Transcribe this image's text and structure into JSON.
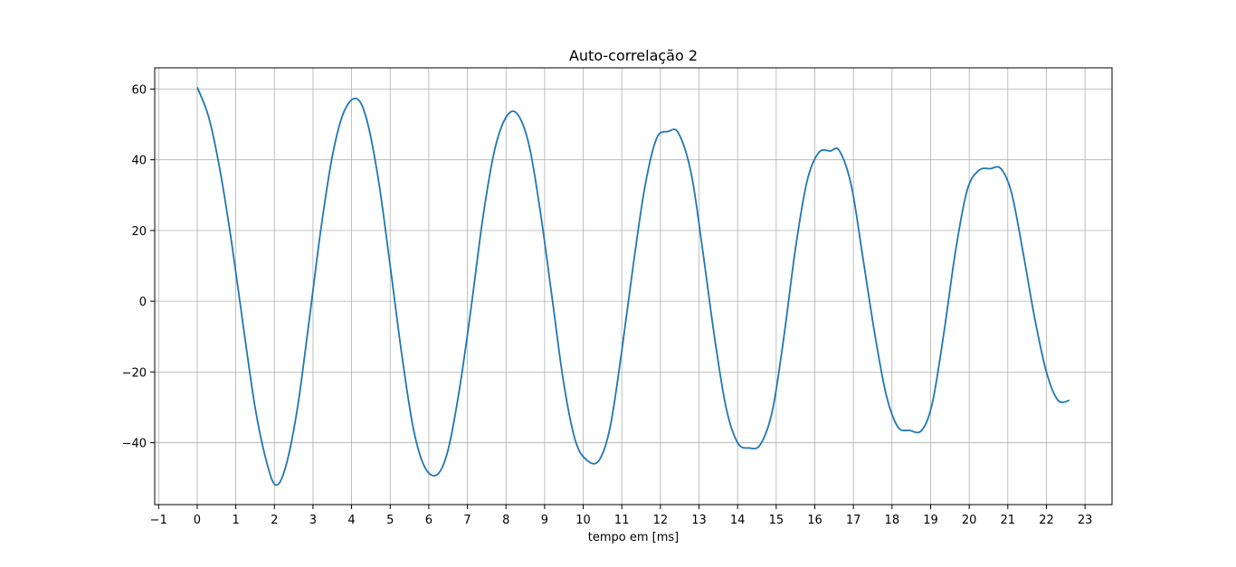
{
  "chart_data": {
    "type": "line",
    "title": "Auto-correlação 2",
    "xlabel": "tempo em [ms]",
    "ylabel": "",
    "xlim": [
      -1.1,
      23.7
    ],
    "ylim": [
      -57.5,
      66.0
    ],
    "xticks": [
      -1,
      0,
      1,
      2,
      3,
      4,
      5,
      6,
      7,
      8,
      9,
      10,
      11,
      12,
      13,
      14,
      15,
      16,
      17,
      18,
      19,
      20,
      21,
      22,
      23
    ],
    "xtick_labels": [
      "−1",
      "0",
      "1",
      "2",
      "3",
      "4",
      "5",
      "6",
      "7",
      "8",
      "9",
      "10",
      "11",
      "12",
      "13",
      "14",
      "15",
      "16",
      "17",
      "18",
      "19",
      "20",
      "21",
      "22",
      "23"
    ],
    "yticks": [
      -40,
      -20,
      0,
      20,
      40,
      60
    ],
    "ytick_labels": [
      "−40",
      "−20",
      "0",
      "20",
      "40",
      "60"
    ],
    "grid": true,
    "line_color": "#1f77b4",
    "series": [
      {
        "x": [
          0.0,
          0.3,
          0.6,
          0.9,
          1.2,
          1.5,
          1.8,
          2.04,
          2.3,
          2.6,
          2.9,
          3.2,
          3.5,
          3.8,
          4.13,
          4.4,
          4.7,
          5.0,
          5.3,
          5.6,
          5.9,
          6.22,
          6.5,
          6.8,
          7.1,
          7.4,
          7.7,
          8.0,
          8.29,
          8.6,
          8.9,
          9.2,
          9.5,
          9.8,
          10.1,
          10.41,
          10.7,
          11.0,
          11.3,
          11.6,
          11.9,
          12.2,
          12.47,
          12.8,
          13.1,
          13.4,
          13.7,
          14.0,
          14.3,
          14.59,
          14.9,
          15.2,
          15.5,
          15.8,
          16.1,
          16.4,
          16.64,
          16.95,
          17.25,
          17.55,
          17.85,
          18.15,
          18.45,
          18.77,
          19.05,
          19.35,
          19.65,
          19.95,
          20.25,
          20.55,
          20.82,
          21.1,
          21.4,
          21.7,
          22.0,
          22.3,
          22.6
        ],
        "y": [
          60.5,
          52.0,
          36.5,
          16.0,
          -7.5,
          -30.0,
          -45.5,
          -52.0,
          -46.5,
          -30.0,
          -5.5,
          20.0,
          41.0,
          53.5,
          57.3,
          51.0,
          34.0,
          10.0,
          -15.0,
          -36.0,
          -47.0,
          -49.0,
          -42.0,
          -24.5,
          -1.5,
          23.5,
          42.5,
          52.0,
          53.0,
          44.0,
          24.5,
          0.5,
          -23.5,
          -39.5,
          -45.0,
          -45.0,
          -35.5,
          -14.0,
          10.5,
          32.5,
          46.0,
          48.0,
          47.5,
          36.0,
          14.0,
          -10.0,
          -30.0,
          -40.0,
          -41.5,
          -40.5,
          -31.0,
          -10.0,
          15.0,
          34.0,
          42.0,
          42.5,
          42.5,
          32.5,
          12.0,
          -9.0,
          -26.5,
          -35.5,
          -36.5,
          -36.5,
          -28.5,
          -8.5,
          14.5,
          31.5,
          37.0,
          37.5,
          37.5,
          30.5,
          13.5,
          -5.0,
          -20.0,
          -28.0,
          -28.0
        ]
      }
    ]
  }
}
